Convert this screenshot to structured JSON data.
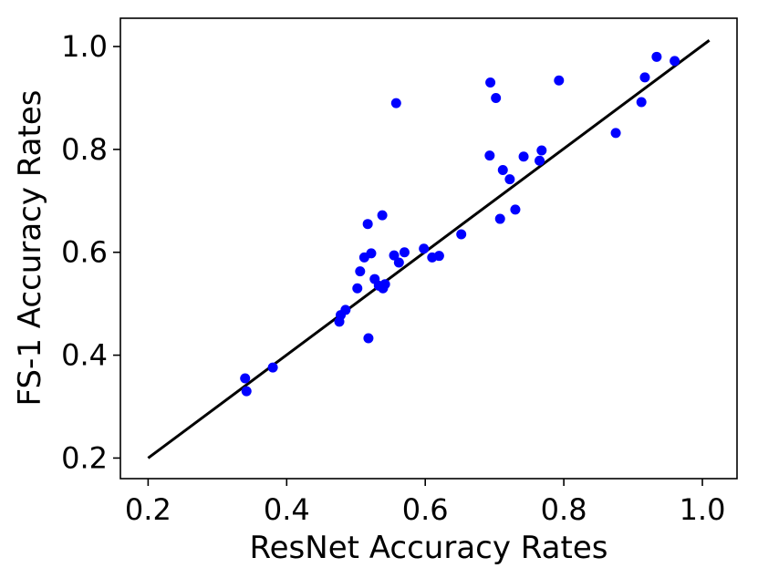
{
  "chart_data": {
    "type": "scatter",
    "title": "",
    "xlabel": "ResNet Accuracy Rates",
    "ylabel": "FS-1 Accuracy Rates",
    "xlim": [
      0.16,
      1.05
    ],
    "ylim": [
      0.16,
      1.055
    ],
    "x_ticks": [
      "0.2",
      "0.4",
      "0.6",
      "0.8",
      "1.0"
    ],
    "y_ticks": [
      "0.2",
      "0.4",
      "0.6",
      "0.8",
      "1.0"
    ],
    "grid": false,
    "legend": "none",
    "point_color": "#0000ff",
    "line_color": "#000000",
    "fit_line": {
      "x": [
        0.2,
        1.01
      ],
      "y": [
        0.2,
        1.012
      ]
    },
    "series": [
      {
        "x": [
          0.34,
          0.342,
          0.38,
          0.476,
          0.478,
          0.485,
          0.502,
          0.506,
          0.512,
          0.517,
          0.518,
          0.522,
          0.527,
          0.533,
          0.538,
          0.539,
          0.542,
          0.555,
          0.558,
          0.562,
          0.57,
          0.598,
          0.61,
          0.62,
          0.652,
          0.693,
          0.694,
          0.702,
          0.708,
          0.712,
          0.722,
          0.73,
          0.742,
          0.765,
          0.768,
          0.793,
          0.875,
          0.912,
          0.917,
          0.934,
          0.96
        ],
        "y": [
          0.355,
          0.33,
          0.376,
          0.465,
          0.478,
          0.488,
          0.53,
          0.563,
          0.59,
          0.655,
          0.433,
          0.598,
          0.548,
          0.535,
          0.672,
          0.53,
          0.538,
          0.594,
          0.89,
          0.58,
          0.6,
          0.607,
          0.59,
          0.593,
          0.635,
          0.788,
          0.93,
          0.9,
          0.665,
          0.76,
          0.742,
          0.683,
          0.786,
          0.778,
          0.798,
          0.934,
          0.832,
          0.892,
          0.94,
          0.98,
          0.972
        ]
      }
    ]
  }
}
